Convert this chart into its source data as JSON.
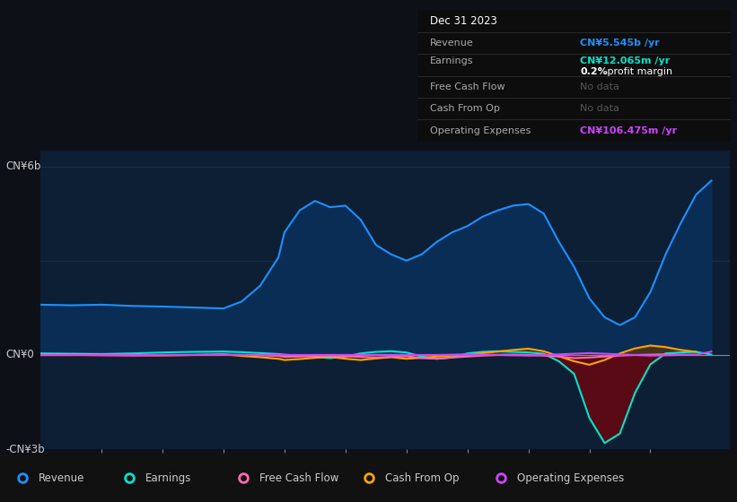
{
  "bg_color": "#0d1117",
  "plot_bg": "#0d1f35",
  "ylabel_top": "CN¥6b",
  "ylabel_bottom": "-CN¥3b",
  "ylabel_mid": "CN¥0",
  "ylim": [
    -3000000000,
    6500000000
  ],
  "years": [
    2013.0,
    2013.5,
    2014.0,
    2014.5,
    2015.0,
    2015.5,
    2016.0,
    2016.3,
    2016.6,
    2016.9,
    2017.0,
    2017.25,
    2017.5,
    2017.75,
    2018.0,
    2018.25,
    2018.5,
    2018.75,
    2019.0,
    2019.25,
    2019.5,
    2019.75,
    2020.0,
    2020.25,
    2020.5,
    2020.75,
    2021.0,
    2021.25,
    2021.5,
    2021.75,
    2022.0,
    2022.25,
    2022.5,
    2022.75,
    2023.0,
    2023.25,
    2023.5,
    2023.75,
    2024.0
  ],
  "revenue": [
    1600000000,
    1580000000,
    1600000000,
    1560000000,
    1540000000,
    1510000000,
    1480000000,
    1700000000,
    2200000000,
    3100000000,
    3900000000,
    4600000000,
    4900000000,
    4700000000,
    4750000000,
    4300000000,
    3500000000,
    3200000000,
    3000000000,
    3200000000,
    3600000000,
    3900000000,
    4100000000,
    4400000000,
    4600000000,
    4750000000,
    4800000000,
    4500000000,
    3600000000,
    2800000000,
    1800000000,
    1200000000,
    950000000,
    1200000000,
    2000000000,
    3200000000,
    4200000000,
    5100000000,
    5545000000
  ],
  "earnings": [
    50000000,
    40000000,
    30000000,
    50000000,
    80000000,
    100000000,
    110000000,
    90000000,
    60000000,
    30000000,
    10000000,
    -20000000,
    -60000000,
    -100000000,
    -50000000,
    50000000,
    100000000,
    120000000,
    80000000,
    -50000000,
    -120000000,
    -80000000,
    50000000,
    100000000,
    120000000,
    100000000,
    80000000,
    40000000,
    -200000000,
    -600000000,
    -2000000000,
    -2800000000,
    -2500000000,
    -1200000000,
    -300000000,
    50000000,
    80000000,
    100000000,
    12065000
  ],
  "free_cash_flow": [
    20000000,
    10000000,
    -10000000,
    -20000000,
    -10000000,
    0,
    10000000,
    0,
    -10000000,
    -30000000,
    -60000000,
    -50000000,
    -30000000,
    -20000000,
    -40000000,
    -60000000,
    -80000000,
    -60000000,
    -40000000,
    -100000000,
    -120000000,
    -80000000,
    -50000000,
    -20000000,
    0,
    10000000,
    0,
    -20000000,
    -50000000,
    -100000000,
    -80000000,
    -50000000,
    -20000000,
    0,
    10000000,
    20000000,
    10000000,
    0,
    null
  ],
  "cash_from_op": [
    30000000,
    20000000,
    10000000,
    0,
    -10000000,
    0,
    20000000,
    -30000000,
    -70000000,
    -120000000,
    -160000000,
    -130000000,
    -90000000,
    -60000000,
    -120000000,
    -160000000,
    -110000000,
    -70000000,
    -120000000,
    -90000000,
    -50000000,
    -20000000,
    10000000,
    60000000,
    110000000,
    160000000,
    200000000,
    120000000,
    -40000000,
    -200000000,
    -310000000,
    -160000000,
    50000000,
    210000000,
    300000000,
    250000000,
    160000000,
    100000000,
    null
  ],
  "operating_expenses": [
    -5000000,
    -4000000,
    -3000000,
    -2000000,
    -1000000,
    0,
    1000000,
    2000000,
    3000000,
    2000000,
    1000000,
    0,
    1000000,
    2000000,
    1000000,
    0,
    -1000000,
    -2000000,
    -1000000,
    0,
    1000000,
    10000000,
    20000000,
    10000000,
    0,
    -10000000,
    -20000000,
    0,
    20000000,
    40000000,
    60000000,
    40000000,
    20000000,
    0,
    -20000000,
    -10000000,
    0,
    10000000,
    106475000
  ],
  "revenue_color": "#1e90ff",
  "revenue_fill": "#0a2d55",
  "earnings_color": "#00e5cc",
  "earnings_pos_fill": "#005a50",
  "earnings_neg_fill": "#5a0a15",
  "fcf_color": "#ff69b4",
  "cashop_color": "#ffa500",
  "cashop_pos_fill": "#5a3800",
  "cashop_neg_fill": "#3a2000",
  "opex_color": "#cc44ff",
  "grid_color": "#1a3550",
  "zero_line_color": "#888888",
  "info_box": {
    "date": "Dec 31 2023",
    "revenue_label": "Revenue",
    "revenue_value": "CN¥5.545b /yr",
    "revenue_color": "#1e90ff",
    "earnings_label": "Earnings",
    "earnings_value": "CN¥12.065m /yr",
    "earnings_color": "#00e5cc",
    "margin_bold": "0.2%",
    "margin_rest": " profit margin",
    "fcf_label": "Free Cash Flow",
    "fcf_value": "No data",
    "cashop_label": "Cash From Op",
    "cashop_value": "No data",
    "opex_label": "Operating Expenses",
    "opex_value": "CN¥106.475m /yr",
    "opex_color": "#cc44ff",
    "bg_color": "#0d0d0d",
    "text_color": "#aaaaaa",
    "nodata_color": "#555555"
  },
  "legend_items": [
    {
      "label": "Revenue",
      "color": "#1e90ff"
    },
    {
      "label": "Earnings",
      "color": "#00e5cc"
    },
    {
      "label": "Free Cash Flow",
      "color": "#ff69b4"
    },
    {
      "label": "Cash From Op",
      "color": "#ffa500"
    },
    {
      "label": "Operating Expenses",
      "color": "#cc44ff"
    }
  ]
}
